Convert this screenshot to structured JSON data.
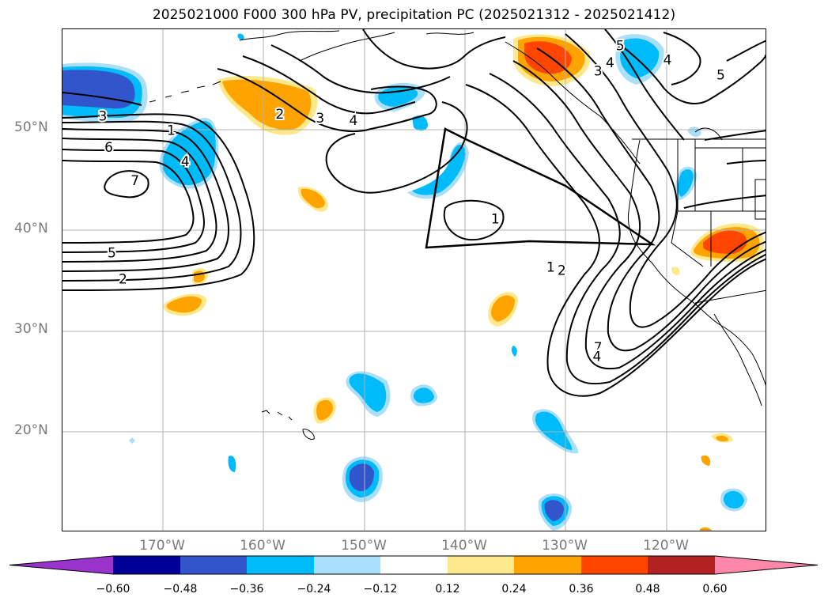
{
  "title": "2025021000 F000 300 hPa PV, precipitation PC (2025021312 - 2025021412)",
  "map": {
    "projection": "PlateCarree",
    "extent": {
      "lon_min": -180,
      "lon_max": -110,
      "lat_min": 10,
      "lat_max": 60
    },
    "gridlines": true,
    "lat_labels": [
      "50°N",
      "40°N",
      "30°N",
      "20°N"
    ],
    "lon_labels": [
      "170°W",
      "160°W",
      "150°W",
      "140°W",
      "130°W",
      "120°W"
    ],
    "features": [
      "coastlines",
      "country-borders",
      "state-borders"
    ]
  },
  "pv_contours": {
    "variable": "300 hPa PV",
    "color": "#000000",
    "levels_labeled": [
      "1",
      "2",
      "3",
      "4",
      "5",
      "6",
      "7"
    ],
    "labels": [
      {
        "text": "3",
        "lon": -176,
        "lat": 51.3
      },
      {
        "text": "1",
        "lon": -169.2,
        "lat": 49.9
      },
      {
        "text": "6",
        "lon": -175.4,
        "lat": 48.2
      },
      {
        "text": "4",
        "lon": -167.8,
        "lat": 46.8
      },
      {
        "text": "7",
        "lon": -172.8,
        "lat": 44.9
      },
      {
        "text": "5",
        "lon": -175.1,
        "lat": 37.7
      },
      {
        "text": "2",
        "lon": -174,
        "lat": 35.1
      },
      {
        "text": "2",
        "lon": -158.4,
        "lat": 51.5
      },
      {
        "text": "3",
        "lon": -154.4,
        "lat": 51.1
      },
      {
        "text": "4",
        "lon": -151.1,
        "lat": 50.9
      },
      {
        "text": "1",
        "lon": -137,
        "lat": 41.1
      },
      {
        "text": "1",
        "lon": -131.5,
        "lat": 36.3
      },
      {
        "text": "2",
        "lon": -130.4,
        "lat": 36
      },
      {
        "text": "7",
        "lon": -126.8,
        "lat": 28.3
      },
      {
        "text": "4",
        "lon": -126.9,
        "lat": 27.4
      },
      {
        "text": "5",
        "lon": -124.6,
        "lat": 58.3
      },
      {
        "text": "4",
        "lon": -125.6,
        "lat": 56.6
      },
      {
        "text": "3",
        "lon": -126.8,
        "lat": 55.8
      },
      {
        "text": "4",
        "lon": -119.9,
        "lat": 56.9
      },
      {
        "text": "5",
        "lon": -114.6,
        "lat": 55.4
      }
    ]
  },
  "precip_pc": {
    "variable": "precipitation PC",
    "valid_period": "2025021312 - 2025021412",
    "shading_levels": [
      -0.6,
      -0.48,
      -0.36,
      -0.24,
      -0.12,
      0.12,
      0.24,
      0.36,
      0.48,
      0.6
    ],
    "colors": {
      "below_-0.60": "#9933cc",
      "-0.60_-0.48": "#000099",
      "-0.48_-0.36": "#3355cc",
      "-0.36_-0.24": "#00bbf9",
      "-0.24_-0.12": "#aadff9",
      "-0.12_0.12": "#ffffff",
      "0.12_0.24": "#fde98b",
      "0.24_0.36": "#ffa300",
      "0.36_0.48": "#ff4500",
      "0.48_0.60": "#b22222",
      "above_0.60": "#ff88aa"
    }
  },
  "colorbar": {
    "orientation": "horizontal",
    "extend": "both",
    "tick_labels": [
      "−0.60",
      "−0.48",
      "−0.36",
      "−0.24",
      "−0.12",
      "0.12",
      "0.24",
      "0.36",
      "0.48",
      "0.60"
    ],
    "colors": [
      "#9933cc",
      "#000099",
      "#3355cc",
      "#00bbf9",
      "#aadff9",
      "#ffffff",
      "#fde98b",
      "#ffa300",
      "#ff4500",
      "#b22222",
      "#ff88aa"
    ]
  }
}
